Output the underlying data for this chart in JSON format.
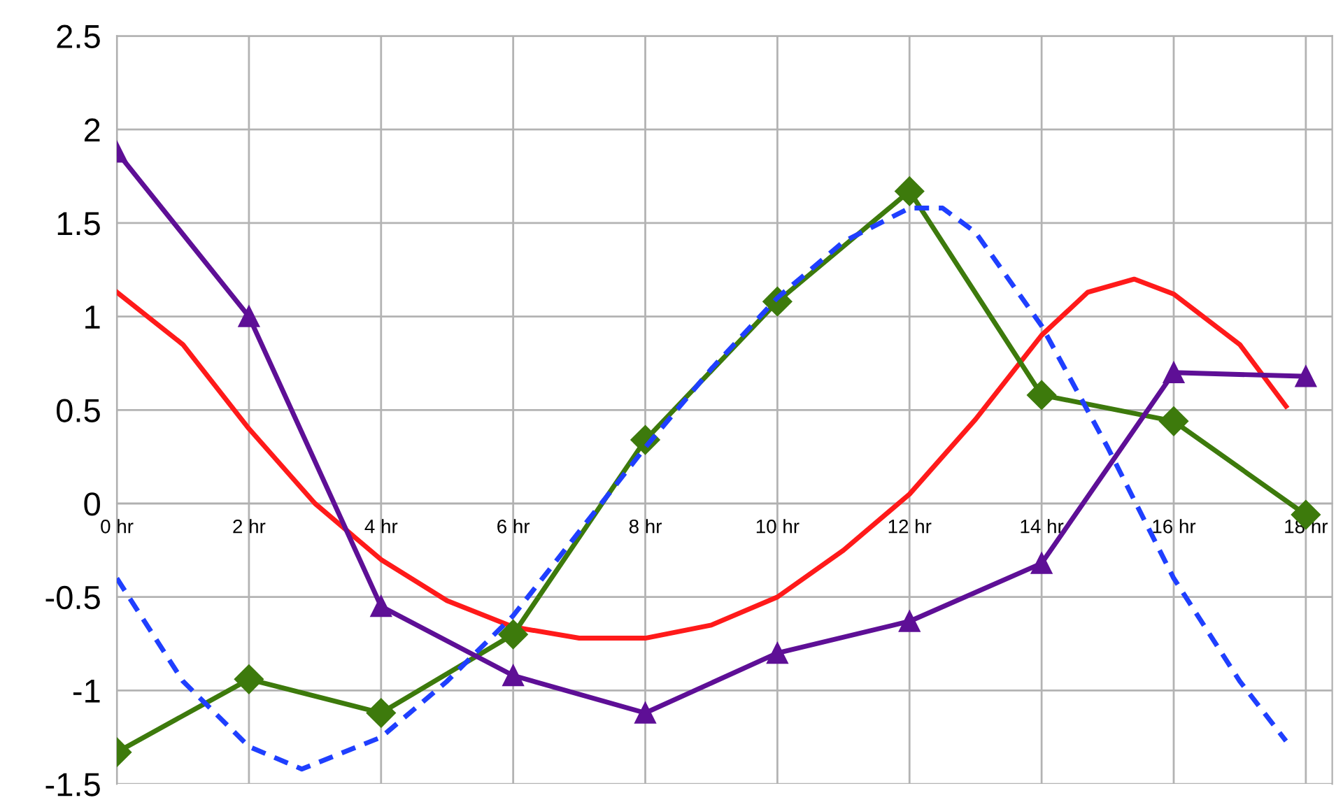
{
  "chart_data": {
    "type": "line",
    "xlim": [
      0,
      18.4
    ],
    "ylim": [
      -1.5,
      2.5
    ],
    "xticks": [
      {
        "value": 0,
        "label": "0 hr"
      },
      {
        "value": 2,
        "label": "2 hr"
      },
      {
        "value": 4,
        "label": "4 hr"
      },
      {
        "value": 6,
        "label": "6 hr"
      },
      {
        "value": 8,
        "label": "8 hr"
      },
      {
        "value": 10,
        "label": "10 hr"
      },
      {
        "value": 12,
        "label": "12 hr"
      },
      {
        "value": 14,
        "label": "14 hr"
      },
      {
        "value": 16,
        "label": "16 hr"
      },
      {
        "value": 18,
        "label": "18 hr"
      }
    ],
    "yticks": [
      -1.5,
      -1,
      -0.5,
      0,
      0.5,
      1,
      1.5,
      2,
      2.5
    ],
    "grid": true,
    "legend": false,
    "series": [
      {
        "color": "#ff1a1a",
        "marker": "none",
        "line_style": "solid",
        "x": [
          0,
          1,
          2,
          3,
          4,
          5,
          6,
          7,
          8,
          9,
          10,
          11,
          12,
          13,
          14,
          14.7,
          15.4,
          16,
          17,
          17.7
        ],
        "values": [
          1.13,
          0.85,
          0.4,
          0.0,
          -0.3,
          -0.52,
          -0.66,
          -0.72,
          -0.72,
          -0.65,
          -0.5,
          -0.25,
          0.05,
          0.45,
          0.9,
          1.13,
          1.2,
          1.12,
          0.85,
          0.52
        ]
      },
      {
        "color": "#3d7a0c",
        "marker": "diamond",
        "line_style": "solid",
        "x": [
          0,
          2,
          4,
          6,
          8,
          10,
          12,
          14,
          16,
          18
        ],
        "values": [
          -1.33,
          -0.94,
          -1.12,
          -0.7,
          0.34,
          1.08,
          1.67,
          0.58,
          0.44,
          -0.06
        ]
      },
      {
        "color": "#5e0f96",
        "marker": "triangle",
        "line_style": "solid",
        "x": [
          0,
          2,
          4,
          6,
          8,
          10,
          12,
          14,
          16,
          18
        ],
        "values": [
          1.88,
          1.0,
          -0.55,
          -0.92,
          -1.12,
          -0.8,
          -0.63,
          -0.32,
          0.7,
          0.68
        ]
      },
      {
        "color": "#1f3fff",
        "marker": "none",
        "line_style": "dashed",
        "x": [
          0,
          1,
          2,
          2.8,
          4,
          5,
          6,
          7,
          8,
          9,
          10,
          11,
          12,
          12.5,
          13,
          14,
          15,
          16,
          17,
          17.7
        ],
        "values": [
          -0.4,
          -0.95,
          -1.3,
          -1.42,
          -1.25,
          -0.95,
          -0.6,
          -0.15,
          0.3,
          0.72,
          1.1,
          1.4,
          1.58,
          1.58,
          1.45,
          0.95,
          0.3,
          -0.4,
          -0.95,
          -1.27
        ]
      }
    ]
  }
}
